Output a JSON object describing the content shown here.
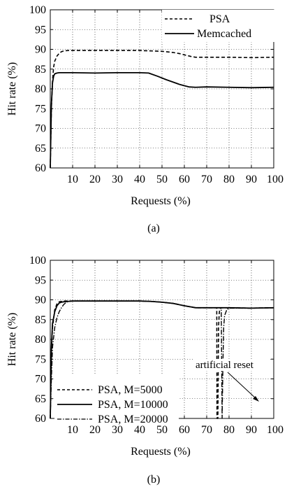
{
  "chart_data": [
    {
      "type": "line",
      "caption": "(a)",
      "xlabel": "Requests (%)",
      "ylabel": "Hit rate (%)",
      "xlim": [
        0,
        100
      ],
      "ylim": [
        60,
        100
      ],
      "xticks": [
        10,
        20,
        30,
        40,
        50,
        60,
        70,
        80,
        90,
        100
      ],
      "yticks": [
        60,
        65,
        70,
        75,
        80,
        85,
        90,
        95,
        100
      ],
      "grid": true,
      "legend_position": "top-right",
      "series": [
        {
          "name": "PSA",
          "style": "dashed",
          "x": [
            0,
            0.5,
            1,
            1.5,
            2,
            3,
            4,
            5,
            6,
            8,
            10,
            20,
            30,
            40,
            45,
            50,
            55,
            58,
            60,
            63,
            65,
            70,
            80,
            90,
            100
          ],
          "y": [
            60,
            75,
            82,
            85.5,
            87,
            88.3,
            89,
            89.4,
            89.6,
            89.7,
            89.7,
            89.7,
            89.7,
            89.7,
            89.6,
            89.5,
            89.2,
            88.9,
            88.6,
            88.2,
            88.0,
            88.0,
            88.0,
            87.9,
            88.0
          ]
        },
        {
          "name": "Memcached",
          "style": "solid",
          "x": [
            0,
            0.5,
            1,
            1.5,
            2,
            3,
            4,
            5,
            10,
            20,
            30,
            40,
            44,
            48,
            52,
            55,
            58,
            60,
            62,
            65,
            70,
            80,
            90,
            100
          ],
          "y": [
            60,
            76,
            81.5,
            83.2,
            83.8,
            84.0,
            84.1,
            84.1,
            84.1,
            84.0,
            84.1,
            84.1,
            84.0,
            83.2,
            82.3,
            81.7,
            81.1,
            80.8,
            80.5,
            80.4,
            80.5,
            80.4,
            80.3,
            80.4
          ]
        }
      ]
    },
    {
      "type": "line",
      "caption": "(b)",
      "xlabel": "Requests (%)",
      "ylabel": "Hit rate (%)",
      "xlim": [
        0,
        100
      ],
      "ylim": [
        60,
        100
      ],
      "xticks": [
        10,
        20,
        30,
        40,
        50,
        60,
        70,
        80,
        90,
        100
      ],
      "yticks": [
        60,
        65,
        70,
        75,
        80,
        85,
        90,
        95,
        100
      ],
      "grid": true,
      "legend_position": "bottom-left",
      "annotation": {
        "text": "artificial reset",
        "target_x": 75,
        "target_y": 75
      },
      "series": [
        {
          "name": "PSA, M=5000",
          "style": "dashed",
          "x": [
            0,
            0.5,
            1,
            2,
            3,
            4,
            5,
            6,
            10,
            20,
            30,
            40,
            45,
            50,
            55,
            60,
            65,
            70,
            74.5,
            74.6,
            75.0,
            75.3,
            75.6,
            75.8,
            76,
            77,
            80,
            90,
            100
          ],
          "y": [
            60,
            77,
            83,
            87.5,
            89,
            89.5,
            89.6,
            89.7,
            89.7,
            89.7,
            89.7,
            89.7,
            89.6,
            89.4,
            89.1,
            88.5,
            88.0,
            88.0,
            88.0,
            60,
            60,
            83,
            86.5,
            87.4,
            87.8,
            88.0,
            88.0,
            87.9,
            88.0
          ]
        },
        {
          "name": "PSA, M=10000",
          "style": "solid",
          "x": [
            0,
            0.5,
            1,
            2,
            3,
            4,
            5,
            6,
            8,
            10,
            20,
            30,
            40,
            45,
            50,
            55,
            60,
            65,
            70,
            80,
            90,
            100
          ],
          "y": [
            60,
            78,
            84,
            87,
            88.5,
            89.2,
            89.4,
            89.5,
            89.6,
            89.7,
            89.7,
            89.7,
            89.7,
            89.6,
            89.4,
            89.1,
            88.5,
            88.0,
            88.0,
            88.0,
            87.9,
            88.0
          ]
        },
        {
          "name": "PSA, M=20000",
          "style": "dashdot",
          "x": [
            0,
            0.5,
            1,
            2,
            3,
            4,
            5,
            6,
            7,
            8,
            10,
            20,
            30,
            40,
            45,
            50,
            55,
            60,
            65,
            70,
            75,
            76.5,
            76.9,
            77.3,
            77.6,
            78,
            79,
            80,
            90,
            100
          ],
          "y": [
            60,
            70,
            78,
            83,
            85.5,
            87,
            88,
            88.8,
            89.3,
            89.6,
            89.7,
            89.7,
            89.7,
            89.7,
            89.6,
            89.4,
            89.1,
            88.5,
            88.0,
            88.0,
            88.0,
            88.0,
            60,
            75,
            83,
            86,
            87.5,
            87.9,
            87.9,
            88.0
          ]
        }
      ]
    }
  ]
}
